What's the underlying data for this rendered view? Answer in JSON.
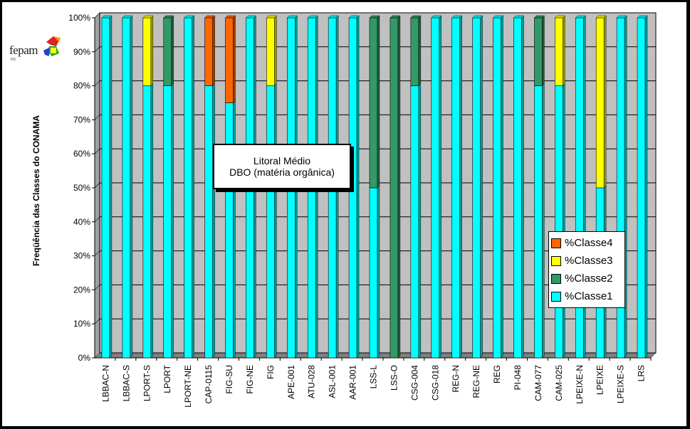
{
  "chart_data": {
    "type": "bar",
    "stacked": true,
    "three_d": true,
    "title": "Litoral Médio",
    "subtitle": "DBO (matéria orgânica)",
    "ylabel": "Freqüência das Classes do CONAMA",
    "ylim": [
      0,
      100
    ],
    "y_ticks": [
      "0%",
      "10%",
      "20%",
      "30%",
      "40%",
      "50%",
      "60%",
      "70%",
      "80%",
      "90%",
      "100%"
    ],
    "y_tick_values": [
      0,
      10,
      20,
      30,
      40,
      50,
      60,
      70,
      80,
      90,
      100
    ],
    "grid": true,
    "legend_position": "right",
    "categories": [
      "LBBAC-N",
      "LBBAC-S",
      "LPORT-S",
      "LPORT",
      "LPORT-NE",
      "CAP-0115",
      "FIG-SU",
      "FIG-NE",
      "FIG",
      "APE-001",
      "ATU-028",
      "ASL-001",
      "AAR-001",
      "LSS-L",
      "LSS-O",
      "CSG-004",
      "CSG-018",
      "REG-N",
      "REG-NE",
      "REG",
      "PI-048",
      "CAM-077",
      "CAM-025",
      "LPEIXE-N",
      "LPEIXE",
      "LPEIXE-S",
      "LRS"
    ],
    "series": [
      {
        "name": "%Classe1",
        "color": "#00ffff",
        "values": [
          100,
          100,
          80,
          80,
          100,
          80,
          75,
          100,
          80,
          100,
          100,
          100,
          100,
          50,
          0,
          80,
          100,
          100,
          100,
          100,
          100,
          80,
          80,
          100,
          50,
          100,
          100
        ]
      },
      {
        "name": "%Classe2",
        "color": "#339966",
        "values": [
          0,
          0,
          0,
          20,
          0,
          0,
          0,
          0,
          0,
          0,
          0,
          0,
          0,
          50,
          100,
          20,
          0,
          0,
          0,
          0,
          0,
          20,
          0,
          0,
          0,
          0,
          0
        ]
      },
      {
        "name": "%Classe3",
        "color": "#ffff00",
        "values": [
          0,
          0,
          20,
          0,
          0,
          0,
          0,
          0,
          20,
          0,
          0,
          0,
          0,
          0,
          0,
          0,
          0,
          0,
          0,
          0,
          0,
          0,
          20,
          0,
          50,
          0,
          0
        ]
      },
      {
        "name": "%Classe4",
        "color": "#ff6600",
        "values": [
          0,
          0,
          0,
          0,
          0,
          20,
          25,
          0,
          0,
          0,
          0,
          0,
          0,
          0,
          0,
          0,
          0,
          0,
          0,
          0,
          0,
          0,
          0,
          0,
          0,
          0,
          0
        ]
      }
    ],
    "legend_order": [
      "%Classe4",
      "%Classe3",
      "%Classe2",
      "%Classe1"
    ]
  },
  "logo": {
    "text": "fepam",
    "subtext": "RS"
  },
  "colors": {
    "wall": "#c0c0c0",
    "floor": "#808080",
    "frame": "#000000",
    "background": "#ffffff"
  }
}
